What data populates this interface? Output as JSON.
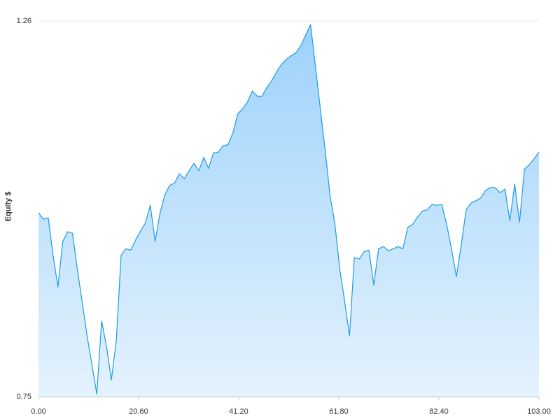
{
  "chart_data": {
    "type": "area",
    "y_label": "Equity $",
    "x": [
      0,
      1,
      2,
      3,
      4,
      5,
      6,
      7,
      8,
      9,
      10,
      11,
      12,
      13,
      14,
      15,
      16,
      17,
      18,
      19,
      20,
      21,
      22,
      23,
      24,
      25,
      26,
      27,
      28,
      29,
      30,
      31,
      32,
      33,
      34,
      35,
      36,
      37,
      38,
      39,
      40,
      41,
      42,
      43,
      44,
      45,
      46,
      47,
      48,
      49,
      50,
      51,
      52,
      53,
      54,
      55,
      56,
      57,
      58,
      59,
      60,
      61,
      62,
      63,
      64,
      65,
      66,
      67,
      68,
      69,
      70,
      71,
      72,
      73,
      74,
      75,
      76,
      77,
      78,
      79,
      80,
      81,
      82,
      83,
      84,
      85,
      86,
      87,
      88,
      89,
      90,
      91,
      92,
      93,
      94,
      95,
      96,
      97,
      98,
      99,
      100,
      101,
      102,
      103
    ],
    "values": [
      1.0,
      0.991,
      0.993,
      0.942,
      0.899,
      0.961,
      0.974,
      0.972,
      0.923,
      0.878,
      0.833,
      0.793,
      0.754,
      0.853,
      0.818,
      0.773,
      0.826,
      0.942,
      0.951,
      0.949,
      0.963,
      0.975,
      0.986,
      1.01,
      0.961,
      0.999,
      1.024,
      1.037,
      1.04,
      1.053,
      1.046,
      1.057,
      1.067,
      1.057,
      1.075,
      1.06,
      1.081,
      1.082,
      1.091,
      1.092,
      1.108,
      1.134,
      1.141,
      1.15,
      1.165,
      1.158,
      1.158,
      1.17,
      1.179,
      1.191,
      1.201,
      1.208,
      1.213,
      1.217,
      1.227,
      1.241,
      1.255,
      1.198,
      1.141,
      1.084,
      1.023,
      0.985,
      0.923,
      0.88,
      0.833,
      0.939,
      0.937,
      0.947,
      0.949,
      0.902,
      0.951,
      0.954,
      0.948,
      0.951,
      0.954,
      0.951,
      0.98,
      0.984,
      0.994,
      1.002,
      1.004,
      1.011,
      1.01,
      1.011,
      0.984,
      0.951,
      0.913,
      0.956,
      1.004,
      1.013,
      1.016,
      1.02,
      1.03,
      1.034,
      1.034,
      1.027,
      1.032,
      0.989,
      1.039,
      0.987,
      1.059,
      1.065,
      1.073,
      1.082
    ],
    "color": "#1a9be6",
    "fill_gradient": [
      "#9dd2fb",
      "#e4f2fd"
    ],
    "xlim": [
      0,
      103
    ],
    "xticks": [
      {
        "value": 0,
        "label": "0.00"
      },
      {
        "value": 20.6,
        "label": "20.60"
      },
      {
        "value": 41.2,
        "label": "41.20"
      },
      {
        "value": 61.8,
        "label": "61.80"
      },
      {
        "value": 82.4,
        "label": "82.40"
      },
      {
        "value": 103,
        "label": "103.00"
      }
    ],
    "ylim": [
      0.75,
      1.26
    ],
    "yticks": [
      0.75,
      1.26
    ],
    "grid": true
  }
}
